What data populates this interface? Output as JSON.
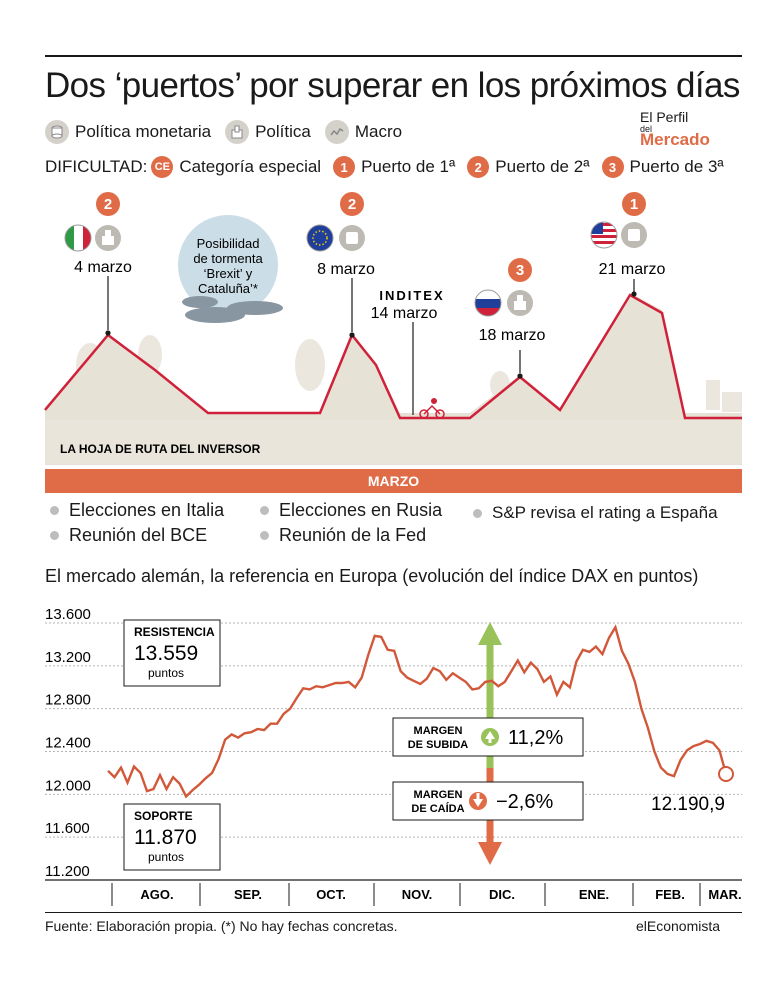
{
  "header": {
    "title": "Dos ‘puertos’ por superar en los próximos días",
    "legend": [
      {
        "icon": "coins-stack-icon",
        "label": "Política monetaria"
      },
      {
        "icon": "ballot-box-icon",
        "label": "Política"
      },
      {
        "icon": "zigzag-line-icon",
        "label": "Macro"
      }
    ],
    "difficulty_label": "DIFICULTAD:",
    "difficulty": [
      {
        "badge": "CE",
        "label": "Categoría especial"
      },
      {
        "badge": "1",
        "label": "Puerto de 1ª"
      },
      {
        "badge": "2",
        "label": "Puerto de 2ª"
      },
      {
        "badge": "3",
        "label": "Puerto de 3ª"
      }
    ],
    "logo": {
      "line1": "El Perfil",
      "line2": "del",
      "line3": "Mercado"
    }
  },
  "route": {
    "caption": "LA HOJA DE RUTA DEL INVERSOR",
    "storm_text": [
      "Posibilidad",
      "de tormenta",
      "‘Brexit’ y",
      "Cataluña’*"
    ],
    "inditex_label": "INDITEX",
    "inditex_date": "14 marzo",
    "peaks": [
      {
        "date": "4 marzo",
        "badge": "2",
        "flag": "italy-flag",
        "event_icon": "ballot-box-icon"
      },
      {
        "date": "8 marzo",
        "badge": "2",
        "flag": "eu-flag",
        "event_icon": "coins-stack-icon"
      },
      {
        "date": "18 marzo",
        "badge": "3",
        "flag": "russia-flag",
        "event_icon": "ballot-box-icon"
      },
      {
        "date": "21 marzo",
        "badge": "1",
        "flag": "usa-flag",
        "event_icon": "coins-stack-icon"
      }
    ],
    "colors": {
      "route": "#d0213a",
      "hill": "#e6e2d6",
      "ground": "#e9e5da",
      "badge": "#e06c47"
    }
  },
  "month_bar": "MARZO",
  "events": [
    "Elecciones en Italia",
    "Elecciones en Rusia",
    "S&P revisa el rating a España",
    "Reunión del BCE",
    "Reunión de la Fed"
  ],
  "chart_title": "El mercado alemán, la referencia en Europa (evolución del índice DAX en puntos)",
  "chart_data": {
    "type": "line",
    "title": "El mercado alemán, la referencia en Europa (evolución del índice DAX en puntos)",
    "ylim": [
      11200,
      13600
    ],
    "yticks": [
      11200,
      11600,
      12000,
      12400,
      12800,
      13200,
      13600
    ],
    "ytick_labels": [
      "11.200",
      "11.600",
      "12.000",
      "12.400",
      "12.800",
      "13.200",
      "13.600"
    ],
    "xticks": [
      "AGO.",
      "SEP.",
      "OCT.",
      "NOV.",
      "DIC.",
      "ENE.",
      "FEB.",
      "MAR."
    ],
    "series": [
      {
        "values": [
          12220,
          12160,
          12250,
          12110,
          12260,
          12200,
          12030,
          12050,
          12180,
          12050,
          12160,
          12100,
          11980,
          12040,
          12090,
          12150,
          12200,
          12330,
          12510,
          12560,
          12530,
          12570,
          12580,
          12610,
          12600,
          12660,
          12660,
          12750,
          12800,
          12900,
          12990,
          12980,
          13010,
          13000,
          13020,
          13040,
          13040,
          13050,
          13000,
          13090,
          13300,
          13480,
          13470,
          13350,
          13340,
          13150,
          13090,
          13060,
          13030,
          13080,
          13180,
          13150,
          13070,
          13130,
          13090,
          13050,
          12980,
          12990,
          13050,
          13060,
          13010,
          13050,
          13150,
          13250,
          13140,
          13230,
          13170,
          13050,
          13100,
          12930,
          13050,
          13000,
          13240,
          13350,
          13330,
          13380,
          13310,
          13460,
          13560,
          13340,
          13220,
          13050,
          12800,
          12620,
          12400,
          12250,
          12190,
          12170,
          12320,
          12410,
          12450,
          12470,
          12500,
          12480,
          12410,
          12190
        ]
      }
    ],
    "resistance": {
      "label": "RESISTENCIA",
      "value": "13.559",
      "unit": "puntos"
    },
    "support": {
      "label": "SOPORTE",
      "value": "11.870",
      "unit": "puntos"
    },
    "margin_up": {
      "label": [
        "MARGEN",
        "DE SUBIDA"
      ],
      "value": "11,2%"
    },
    "margin_down": {
      "label": [
        "MARGEN",
        "DE CAÍDA"
      ],
      "value": "−2,6%"
    },
    "last_value": "12.190,9",
    "colors": {
      "line": "#d2583a",
      "up": "#9ac25a",
      "down": "#e06c47",
      "grid": "#cccccc"
    }
  },
  "footer": {
    "source": "Fuente: Elaboración propia. (*) No hay fechas concretas.",
    "brand": "elEconomista"
  }
}
